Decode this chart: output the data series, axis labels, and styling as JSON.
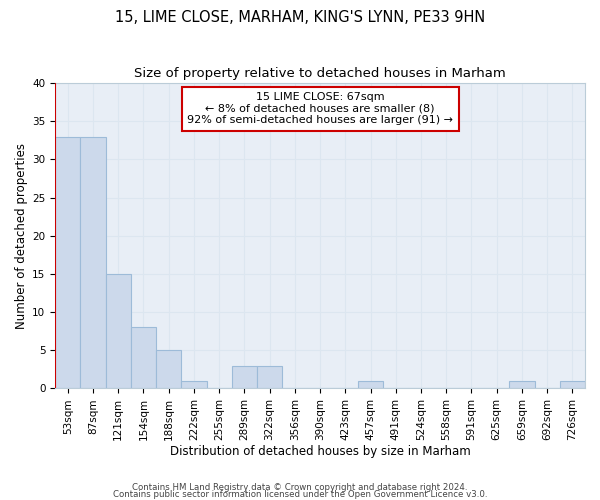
{
  "title1": "15, LIME CLOSE, MARHAM, KING'S LYNN, PE33 9HN",
  "title2": "Size of property relative to detached houses in Marham",
  "xlabel": "Distribution of detached houses by size in Marham",
  "ylabel": "Number of detached properties",
  "bin_labels": [
    "53sqm",
    "87sqm",
    "121sqm",
    "154sqm",
    "188sqm",
    "222sqm",
    "255sqm",
    "289sqm",
    "322sqm",
    "356sqm",
    "390sqm",
    "423sqm",
    "457sqm",
    "491sqm",
    "524sqm",
    "558sqm",
    "591sqm",
    "625sqm",
    "659sqm",
    "692sqm",
    "726sqm"
  ],
  "bar_heights": [
    33,
    33,
    15,
    8,
    5,
    1,
    0,
    3,
    3,
    0,
    0,
    0,
    1,
    0,
    0,
    0,
    0,
    0,
    1,
    0,
    1
  ],
  "bar_color": "#ccd9eb",
  "bar_edgecolor": "#9dbbd8",
  "bar_linewidth": 0.8,
  "annotation_text": "15 LIME CLOSE: 67sqm\n← 8% of detached houses are smaller (8)\n92% of semi-detached houses are larger (91) →",
  "annotation_box_edgecolor": "#cc0000",
  "annotation_box_facecolor": "#ffffff",
  "footer1": "Contains HM Land Registry data © Crown copyright and database right 2024.",
  "footer2": "Contains public sector information licensed under the Open Government Licence v3.0.",
  "ylim": [
    0,
    40
  ],
  "yticks": [
    0,
    5,
    10,
    15,
    20,
    25,
    30,
    35,
    40
  ],
  "grid_color": "#dce6f0",
  "background_color": "#e8eef6",
  "title1_fontsize": 10.5,
  "title2_fontsize": 9.5,
  "axis_fontsize": 8.5,
  "ylabel_fontsize": 8.5,
  "tick_fontsize": 7.5,
  "footer_fontsize": 6.2
}
